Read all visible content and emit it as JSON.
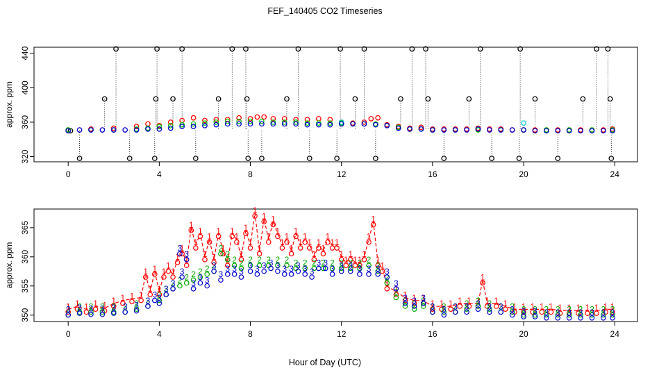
{
  "title": "FEF_140405  CO2 Timeseries",
  "xlabel": "Hour of Day (UTC)",
  "colors": {
    "series1": "#ff0000",
    "series2": "#00cc00",
    "series3": "#0000cc",
    "top_cyan": "#00cccc",
    "black": "#000000"
  },
  "chart_data": [
    {
      "type": "scatter",
      "title": "FEF_140405  CO2 Timeseries",
      "ylabel": "approx. ppm",
      "xlim": [
        -1.5,
        25.0
      ],
      "ylim": [
        314,
        447
      ],
      "xticks": [
        0,
        4,
        8,
        12,
        16,
        20,
        24
      ],
      "yticks": [
        320,
        360,
        400,
        440
      ],
      "marker": "circle",
      "series": [
        {
          "color": "#000000",
          "x": [
            0.1,
            0.5,
            1.6,
            2.1,
            2.7,
            3.8,
            3.85,
            3.9,
            4.6,
            5.0,
            5.6,
            6.6,
            7.2,
            7.8,
            7.85,
            7.9,
            8.5,
            9.6,
            10.1,
            10.6,
            11.8,
            11.95,
            12.6,
            13.0,
            13.5,
            14.6,
            15.1,
            15.7,
            15.8,
            16.5,
            17.6,
            18.1,
            18.6,
            19.8,
            19.85,
            20.5,
            21.5,
            22.6,
            23.2,
            23.7,
            23.8,
            23.85
          ],
          "y": [
            350,
            318,
            387,
            445,
            318,
            318,
            387,
            445,
            387,
            445,
            318,
            387,
            445,
            445,
            387,
            318,
            318,
            387,
            445,
            318,
            318,
            445,
            387,
            445,
            318,
            387,
            445,
            445,
            387,
            318,
            387,
            445,
            318,
            318,
            445,
            387,
            318,
            387,
            445,
            445,
            387,
            318
          ]
        },
        {
          "color": "#ff0000",
          "x": [
            0,
            1,
            2,
            3,
            3.5,
            4,
            4.5,
            5,
            5.5,
            6,
            6.5,
            7,
            7.5,
            8,
            8.3,
            8.6,
            9,
            9.5,
            10,
            10.5,
            11,
            11.5,
            12,
            12.5,
            13,
            13.3,
            13.6,
            14,
            14.5,
            15,
            15.5,
            16,
            16.5,
            17,
            17.5,
            18,
            18.5,
            19,
            19.5,
            20,
            20.5,
            21,
            21.5,
            22,
            22.5,
            23,
            23.5,
            23.9
          ],
          "y": [
            351,
            352,
            353,
            355,
            358,
            356,
            360,
            362,
            365,
            362,
            363,
            363,
            365,
            364,
            366,
            366,
            364,
            364,
            363,
            363,
            364,
            363,
            360,
            359,
            360,
            364,
            365,
            357,
            355,
            353,
            354,
            352,
            352,
            352,
            352,
            353,
            352,
            352,
            351,
            351,
            351,
            351,
            351,
            351,
            351,
            351,
            351,
            352
          ]
        },
        {
          "color": "#00cc00",
          "x": [
            0,
            1,
            2,
            3,
            3.5,
            4,
            4.5,
            5,
            5.5,
            6,
            6.5,
            7,
            7.5,
            8,
            8.5,
            9,
            9.5,
            10,
            10.5,
            11,
            11.5,
            12,
            12.5,
            13,
            13.5,
            14,
            14.5,
            15,
            15.5,
            16,
            17,
            18,
            19,
            20,
            21,
            22,
            23,
            23.9
          ],
          "y": [
            351,
            351,
            351,
            352,
            353,
            355,
            356,
            357,
            358,
            359,
            360,
            361,
            361,
            361,
            361,
            360,
            360,
            360,
            359,
            359,
            359,
            359,
            358,
            358,
            358,
            356,
            354,
            352,
            352,
            351,
            351,
            351,
            351,
            351,
            351,
            351,
            351,
            351
          ]
        },
        {
          "color": "#00cccc",
          "x": [
            12.0,
            20.0
          ],
          "y": [
            360,
            359
          ]
        },
        {
          "color": "#0000cc",
          "x": [
            0,
            0.5,
            1,
            1.5,
            2,
            2.5,
            3,
            3.5,
            4,
            4.5,
            5,
            5.5,
            6,
            6.5,
            7,
            7.5,
            8,
            8.5,
            9,
            9.5,
            10,
            10.5,
            11,
            11.5,
            12,
            12.5,
            13,
            13.5,
            14,
            14.5,
            15,
            15.5,
            16,
            16.5,
            17,
            17.5,
            18,
            18.5,
            19,
            19.5,
            20,
            20.5,
            21,
            21.5,
            22,
            22.5,
            23,
            23.5,
            23.9
          ],
          "y": [
            350,
            351,
            351,
            351,
            351,
            351,
            351,
            352,
            352,
            353,
            355,
            355,
            356,
            357,
            358,
            358,
            358,
            358,
            358,
            358,
            358,
            357,
            357,
            357,
            358,
            358,
            358,
            357,
            356,
            353,
            352,
            352,
            351,
            351,
            351,
            351,
            352,
            351,
            351,
            351,
            351,
            350,
            350,
            350,
            350,
            350,
            350,
            350,
            350
          ]
        }
      ]
    },
    {
      "type": "scatter",
      "ylabel": "approx. ppm",
      "xlim": [
        -1.5,
        25.0
      ],
      "ylim": [
        348.9,
        368.2
      ],
      "xticks": [
        0,
        4,
        8,
        12,
        16,
        20,
        24
      ],
      "yticks": [
        350,
        355,
        360,
        365
      ],
      "series": [
        {
          "label_char": "1",
          "color": "#ff0000",
          "dashed": true,
          "x": [
            0,
            0.4,
            0.8,
            1.2,
            1.6,
            2.0,
            2.4,
            2.8,
            3.2,
            3.4,
            3.6,
            3.8,
            4.0,
            4.2,
            4.4,
            4.6,
            4.8,
            5.0,
            5.2,
            5.4,
            5.6,
            5.8,
            6.0,
            6.2,
            6.4,
            6.6,
            6.8,
            7.0,
            7.2,
            7.4,
            7.6,
            7.8,
            8.0,
            8.2,
            8.4,
            8.6,
            8.8,
            9.0,
            9.2,
            9.4,
            9.6,
            9.8,
            10.0,
            10.2,
            10.4,
            10.6,
            10.8,
            11.0,
            11.2,
            11.4,
            11.6,
            11.8,
            12.0,
            12.2,
            12.4,
            12.6,
            12.8,
            13.0,
            13.2,
            13.4,
            13.6,
            13.8,
            14.0,
            14.4,
            14.8,
            15.2,
            15.6,
            16.0,
            16.4,
            16.8,
            17.2,
            17.6,
            18.0,
            18.2,
            18.4,
            18.8,
            19.2,
            19.6,
            20.0,
            20.4,
            20.8,
            21.2,
            21.6,
            22.0,
            22.4,
            22.8,
            23.2,
            23.6,
            23.9
          ],
          "y": [
            351,
            351.5,
            351,
            351.5,
            351.2,
            352,
            352.5,
            352.8,
            353,
            357,
            354,
            357.5,
            354,
            357,
            358,
            357,
            359.5,
            361,
            359,
            365,
            362,
            364,
            360,
            363,
            359.5,
            364,
            361,
            359,
            364,
            363,
            360,
            364.5,
            362,
            367.5,
            361,
            366.5,
            363,
            366,
            364,
            362,
            363,
            361,
            364,
            362,
            363,
            362,
            360,
            362,
            361,
            363,
            362,
            362,
            360,
            359,
            360,
            359,
            359,
            360,
            363,
            366,
            359,
            358,
            355,
            354,
            353,
            352.5,
            352.5,
            351.5,
            351.5,
            351.5,
            352,
            352,
            352,
            356,
            352,
            352,
            351.5,
            351,
            351,
            351,
            351,
            351,
            350.8,
            350.8,
            350.8,
            350.8,
            350.8,
            351,
            351
          ]
        },
        {
          "label_char": "2",
          "color": "#00aa00",
          "x": [
            0,
            0.5,
            1,
            1.5,
            2,
            2.5,
            3,
            3.5,
            4,
            4.3,
            4.6,
            4.9,
            5.2,
            5.5,
            5.8,
            6.1,
            6.4,
            6.7,
            7.0,
            7.3,
            7.6,
            8.0,
            8.4,
            8.8,
            9.2,
            9.6,
            10.0,
            10.4,
            10.8,
            11.2,
            11.6,
            12.0,
            12.4,
            12.8,
            13.2,
            13.6,
            14.0,
            14.4,
            14.8,
            15.2,
            15.6,
            16.0,
            16.5,
            17.0,
            17.5,
            18.0,
            18.5,
            19.0,
            19.5,
            20.0,
            20.5,
            21.0,
            21.5,
            22.0,
            22.5,
            23.0,
            23.5,
            23.9
          ],
          "y": [
            350.5,
            351,
            351,
            351,
            351,
            351,
            351.5,
            352,
            353,
            354,
            355,
            355.5,
            356,
            356.5,
            357,
            357.5,
            358,
            361,
            360,
            359,
            358.5,
            359,
            359,
            359,
            359,
            359,
            358.5,
            358.5,
            358.5,
            358.5,
            358.5,
            358.5,
            358.5,
            358.5,
            359,
            358,
            356,
            353.5,
            352,
            351.5,
            352,
            351,
            351,
            351,
            351.5,
            352,
            351.5,
            351,
            351,
            350.5,
            350.5,
            350.5,
            350.5,
            350.5,
            350.5,
            350.5,
            350.5,
            350.5
          ]
        },
        {
          "label_char": "3",
          "color": "#0000cc",
          "x": [
            0,
            0.5,
            1,
            1.5,
            2,
            2.5,
            3,
            3.5,
            3.8,
            4.0,
            4.3,
            4.6,
            4.9,
            5.0,
            5.2,
            5.5,
            5.8,
            6.1,
            6.4,
            6.7,
            7.0,
            7.3,
            7.6,
            8.0,
            8.3,
            8.6,
            8.9,
            9.2,
            9.5,
            9.8,
            10.1,
            10.4,
            10.7,
            11.0,
            11.3,
            11.6,
            12.0,
            12.4,
            12.8,
            13.2,
            13.6,
            14.0,
            14.4,
            14.8,
            15.2,
            15.6,
            16.0,
            16.5,
            17.0,
            17.5,
            18.0,
            18.5,
            19.0,
            19.5,
            20.0,
            20.5,
            21.0,
            21.5,
            22.0,
            22.5,
            23.0,
            23.5,
            23.9
          ],
          "y": [
            350.5,
            350.8,
            350.6,
            350.6,
            350.8,
            351,
            351.2,
            352,
            353,
            352.5,
            354,
            355,
            361,
            357,
            360,
            355,
            356,
            355.5,
            358,
            356.5,
            357.5,
            357.5,
            357,
            358,
            357.5,
            358,
            358.5,
            358,
            357.5,
            357.5,
            358,
            357.5,
            357,
            358.5,
            358.5,
            357.5,
            358,
            358,
            357.5,
            357.5,
            357.5,
            357,
            355,
            352.5,
            352,
            352.5,
            351,
            350.5,
            351,
            351,
            351.5,
            351,
            351,
            350.5,
            350.2,
            350.2,
            350,
            350,
            350,
            350,
            350,
            350,
            350
          ]
        }
      ]
    }
  ]
}
